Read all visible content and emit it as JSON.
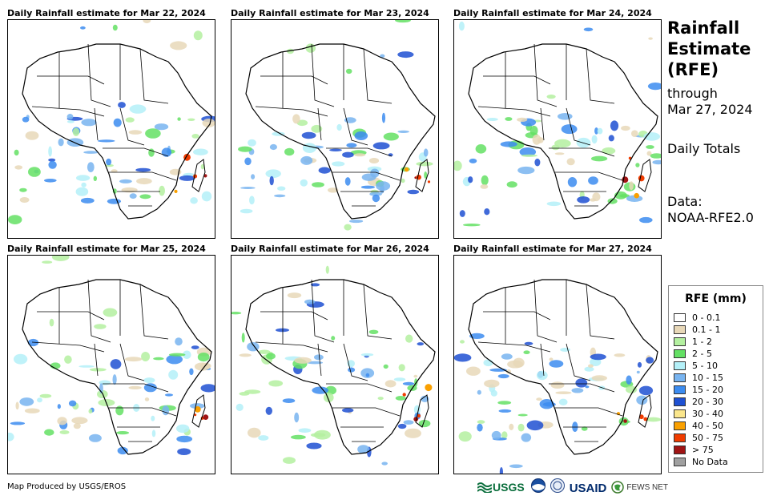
{
  "panels": [
    {
      "title": "Daily Rainfall estimate for Mar 22, 2024"
    },
    {
      "title": "Daily Rainfall estimate for Mar 23, 2024"
    },
    {
      "title": "Daily Rainfall estimate for Mar 24, 2024"
    },
    {
      "title": "Daily Rainfall estimate for Mar 25, 2024"
    },
    {
      "title": "Daily Rainfall estimate for Mar 26, 2024"
    },
    {
      "title": "Daily Rainfall estimate for Mar 27, 2024"
    }
  ],
  "side": {
    "title_line1": "Rainfall",
    "title_line2": "Estimate",
    "title_line3": "(RFE)",
    "through_label": "through",
    "through_date": "Mar 27, 2024",
    "totals": "Daily Totals",
    "data_label": "Data:",
    "data_source": "NOAA-RFE2.0"
  },
  "legend": {
    "title": "RFE (mm)",
    "items": [
      {
        "label": "0 - 0.1",
        "color": "#ffffff"
      },
      {
        "label": "0.1 - 1",
        "color": "#e8d8b8"
      },
      {
        "label": "1 - 2",
        "color": "#b4f0a0"
      },
      {
        "label": "2 - 5",
        "color": "#64e064"
      },
      {
        "label": "5 - 10",
        "color": "#b4f0f8"
      },
      {
        "label": "10 - 15",
        "color": "#78b4f0"
      },
      {
        "label": "15 - 20",
        "color": "#3c8cf0"
      },
      {
        "label": "20 - 30",
        "color": "#1e50d2"
      },
      {
        "label": "30 - 40",
        "color": "#fae68c"
      },
      {
        "label": "40 - 50",
        "color": "#faa000"
      },
      {
        "label": "50 - 75",
        "color": "#f03c00"
      },
      {
        "label": "> 75",
        "color": "#a01414"
      },
      {
        "label": "No Data",
        "color": "#a0a0a0"
      }
    ]
  },
  "footer": {
    "credit": "Map Produced by USGS/EROS"
  },
  "logos": {
    "usgs": "USGS",
    "usaid": "USAID",
    "fewsnet": "FEWS NET"
  }
}
